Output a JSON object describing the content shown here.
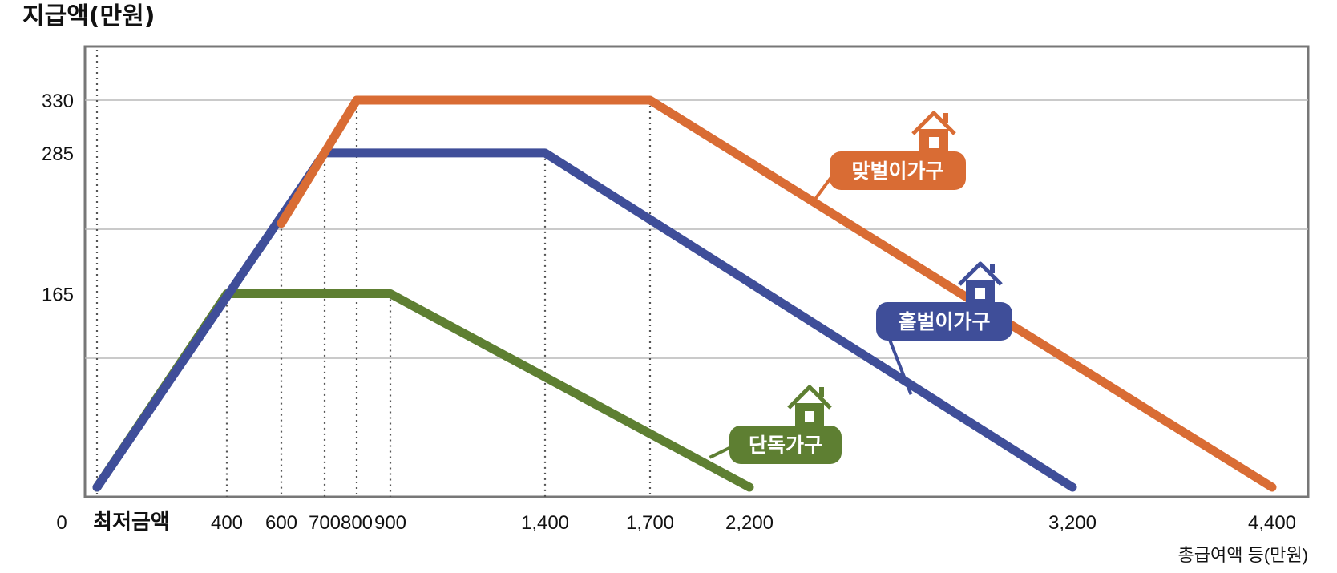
{
  "chart_data": {
    "type": "line",
    "ylabel": "지급액(만원)",
    "xlabel": "총급여액 등(만원)",
    "x_tick_labels": [
      {
        "x": 0,
        "label": "0"
      },
      {
        "x": 80,
        "label": "최저금액"
      },
      {
        "x": 400,
        "label": "400"
      },
      {
        "x": 600,
        "label": "600"
      },
      {
        "x": 700,
        "label": "700"
      },
      {
        "x": 800,
        "label": "800"
      },
      {
        "x": 900,
        "label": "900"
      },
      {
        "x": 1400,
        "label": "1,400"
      },
      {
        "x": 1700,
        "label": "1,700"
      },
      {
        "x": 2200,
        "label": "2,200"
      },
      {
        "x": 3200,
        "label": "3,200"
      },
      {
        "x": 4400,
        "label": "4,400"
      }
    ],
    "y_ticks": [
      165,
      285,
      330
    ],
    "ylim": [
      0,
      380
    ],
    "grid": "horizontal",
    "series": [
      {
        "name": "단독가구",
        "color": "#5e7f32",
        "points": [
          [
            0,
            0
          ],
          [
            400,
            165
          ],
          [
            900,
            165
          ],
          [
            2200,
            0
          ]
        ]
      },
      {
        "name": "홑벌이가구",
        "color": "#3f4e99",
        "points": [
          [
            0,
            0
          ],
          [
            700,
            285
          ],
          [
            1400,
            285
          ],
          [
            3200,
            0
          ]
        ]
      },
      {
        "name": "맞벌이가구",
        "color": "#d96c34",
        "points": [
          [
            600,
            225
          ],
          [
            800,
            330
          ],
          [
            1700,
            330
          ],
          [
            4400,
            0
          ]
        ]
      }
    ],
    "reference_lines_x": [
      0,
      400,
      600,
      700,
      800,
      900,
      1400,
      1700
    ],
    "labels_icon": "house-icon"
  }
}
